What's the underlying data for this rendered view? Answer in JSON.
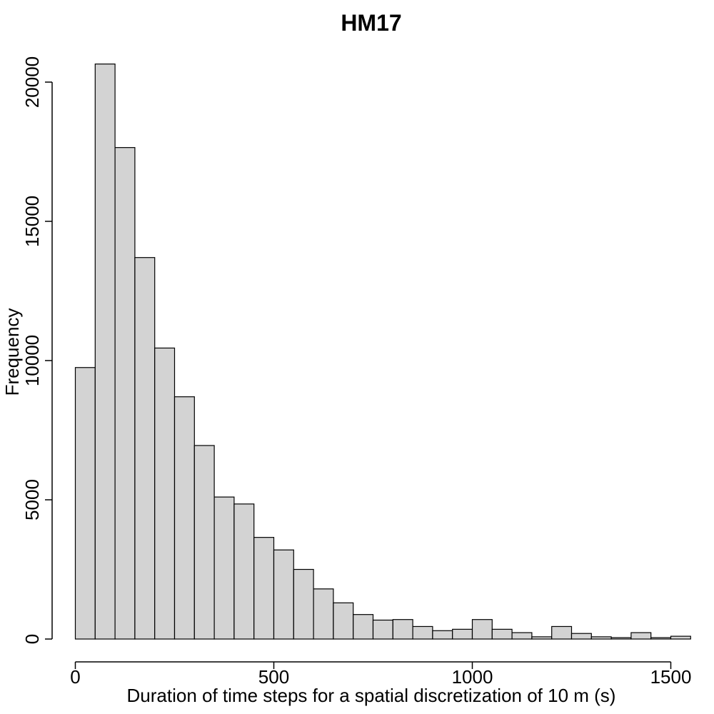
{
  "chart_data": {
    "type": "bar",
    "subtype": "histogram",
    "title": "HM17",
    "xlabel": "Duration of time steps for a spatial discretization of 10 m (s)",
    "ylabel": "Frequency",
    "bin_width": 50,
    "bin_start": 0,
    "xlim": [
      0,
      1560
    ],
    "ylim": [
      0,
      20000
    ],
    "x_ticks": [
      0,
      500,
      1000,
      1500
    ],
    "y_ticks": [
      0,
      5000,
      10000,
      15000,
      20000
    ],
    "x_tick_labels": [
      "0",
      "500",
      "1000",
      "1500"
    ],
    "y_tick_labels": [
      "0",
      "5000",
      "10000",
      "15000",
      "20000"
    ],
    "values": [
      9750,
      20650,
      17650,
      13700,
      10450,
      8700,
      6950,
      5100,
      4850,
      3650,
      3200,
      2500,
      1800,
      1300,
      880,
      680,
      700,
      450,
      300,
      350,
      700,
      350,
      230,
      80,
      450,
      200,
      80,
      50,
      230,
      50,
      100
    ],
    "bar_color": "#d3d3d3",
    "grid": false
  }
}
